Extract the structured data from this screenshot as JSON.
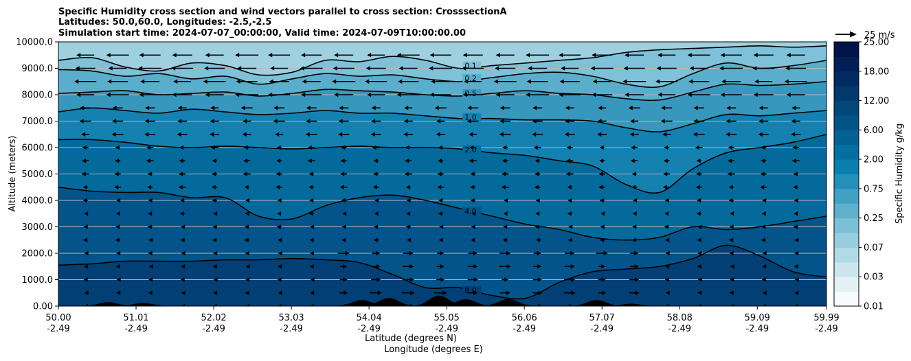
{
  "chart_data": {
    "type": "contour",
    "title_lines": [
      "Specific Humidity cross section and wind vectors parallel to cross section: CrosssectionA",
      "Latitudes: 50.0,60.0, Longitudes: -2.5,-2.5",
      "Simulation start time: 2024-07-07_00:00:00, Valid time: 2024-07-09T10:00:00.00"
    ],
    "xlabel_lines": [
      "Latitude (degrees N)",
      "Longitude (degrees E)"
    ],
    "ylabel": "Altitude (meters)",
    "xlim": [
      50.0,
      59.99
    ],
    "ylim": [
      0,
      10000
    ],
    "x_ticks": [
      {
        "lat": "50.00",
        "lon": "-2.49",
        "v": 50.0
      },
      {
        "lat": "51.01",
        "lon": "-2.49",
        "v": 51.01
      },
      {
        "lat": "52.02",
        "lon": "-2.49",
        "v": 52.02
      },
      {
        "lat": "53.03",
        "lon": "-2.49",
        "v": 53.03
      },
      {
        "lat": "54.04",
        "lon": "-2.49",
        "v": 54.04
      },
      {
        "lat": "55.05",
        "lon": "-2.49",
        "v": 55.05
      },
      {
        "lat": "56.06",
        "lon": "-2.49",
        "v": 56.06
      },
      {
        "lat": "57.07",
        "lon": "-2.49",
        "v": 57.07
      },
      {
        "lat": "58.08",
        "lon": "-2.49",
        "v": 58.08
      },
      {
        "lat": "59.09",
        "lon": "-2.49",
        "v": 59.09
      },
      {
        "lat": "59.99",
        "lon": "-2.49",
        "v": 59.99
      }
    ],
    "y_ticks": [
      {
        "label": "0.00",
        "v": 0
      },
      {
        "label": "1000.0",
        "v": 1000
      },
      {
        "label": "2000.0",
        "v": 2000
      },
      {
        "label": "3000.0",
        "v": 3000
      },
      {
        "label": "4000.0",
        "v": 4000
      },
      {
        "label": "5000.0",
        "v": 5000
      },
      {
        "label": "6000.0",
        "v": 6000
      },
      {
        "label": "7000.0",
        "v": 7000
      },
      {
        "label": "8000.0",
        "v": 8000
      },
      {
        "label": "9000.0",
        "v": 9000
      },
      {
        "label": "10000.0",
        "v": 10000
      }
    ],
    "grid": "horizontal",
    "colorbar": {
      "label": "Specific Humidity g/kg",
      "levels": [
        "0.01",
        "0.03",
        "0.07",
        "0.25",
        "0.75",
        "2.00",
        "6.00",
        "12.00",
        "18.00",
        "25.00"
      ],
      "colors": [
        "#f7fbfc",
        "#e3f1f4",
        "#cbe6ed",
        "#b1dae6",
        "#97cdde",
        "#7cc0d6",
        "#5fb0cd",
        "#42a0c3",
        "#2490ba",
        "#0a7fae",
        "#046fa0",
        "#036193",
        "#035386",
        "#03467a",
        "#02396d",
        "#022c61",
        "#021f55",
        "#011349"
      ]
    },
    "wind_key": {
      "label": "25 m/s",
      "value": 25
    },
    "contours": [
      {
        "level": "0.1",
        "y": [
          9300,
          9400,
          9050,
          8900,
          9200,
          9100,
          8750,
          8850,
          9300,
          9250,
          9450,
          9300,
          9000,
          9100,
          9200,
          9300,
          9400,
          9600,
          9700,
          9750,
          9800,
          9850,
          9800,
          9850
        ]
      },
      {
        "level": "0.2",
        "y": [
          8950,
          8900,
          8700,
          8800,
          8600,
          8700,
          8400,
          8600,
          8800,
          8700,
          8750,
          8600,
          8500,
          8650,
          8800,
          8850,
          8700,
          8400,
          8300,
          8800,
          9200,
          9000,
          9100,
          9300
        ]
      },
      {
        "level": "0.5",
        "y": [
          8050,
          8100,
          8150,
          8000,
          8050,
          8100,
          7950,
          8050,
          8200,
          8150,
          8100,
          8000,
          7950,
          8050,
          8150,
          8050,
          8000,
          7850,
          7800,
          8100,
          8400,
          8350,
          8400,
          8500
        ]
      },
      {
        "level": "1.0",
        "y": [
          7350,
          7500,
          7400,
          7300,
          7450,
          7350,
          7250,
          7300,
          7400,
          7300,
          7300,
          7200,
          7100,
          7100,
          7050,
          7050,
          7000,
          6750,
          6600,
          6900,
          7250,
          7200,
          7300,
          7400
        ]
      },
      {
        "level": "2.0",
        "y": [
          6300,
          6300,
          6200,
          6050,
          6000,
          6050,
          6000,
          5950,
          6000,
          6050,
          6000,
          6000,
          5950,
          5800,
          5700,
          5500,
          5300,
          4600,
          4300,
          5200,
          5800,
          6000,
          6200,
          6500
        ]
      },
      {
        "level": "4.0",
        "y": [
          4500,
          4350,
          4300,
          4300,
          4100,
          4100,
          3400,
          3300,
          3800,
          4100,
          4200,
          4000,
          3700,
          3400,
          3100,
          2900,
          2600,
          2500,
          2600,
          3000,
          2900,
          3000,
          3200,
          3400
        ]
      },
      {
        "level": "8.0",
        "y": [
          1550,
          1600,
          1700,
          1700,
          1700,
          1750,
          1750,
          1800,
          1750,
          1650,
          1200,
          700,
          700,
          400,
          300,
          900,
          1300,
          1400,
          1500,
          1800,
          2300,
          1900,
          1300,
          1100
        ]
      }
    ],
    "terrain_peaks": [
      {
        "lat": 50.65,
        "h": 150
      },
      {
        "lat": 51.1,
        "h": 120
      },
      {
        "lat": 53.95,
        "h": 230
      },
      {
        "lat": 54.3,
        "h": 310
      },
      {
        "lat": 54.95,
        "h": 400
      },
      {
        "lat": 55.3,
        "h": 260
      },
      {
        "lat": 55.85,
        "h": 270
      },
      {
        "lat": 57.0,
        "h": 230
      },
      {
        "lat": 57.45,
        "h": 90
      }
    ]
  }
}
